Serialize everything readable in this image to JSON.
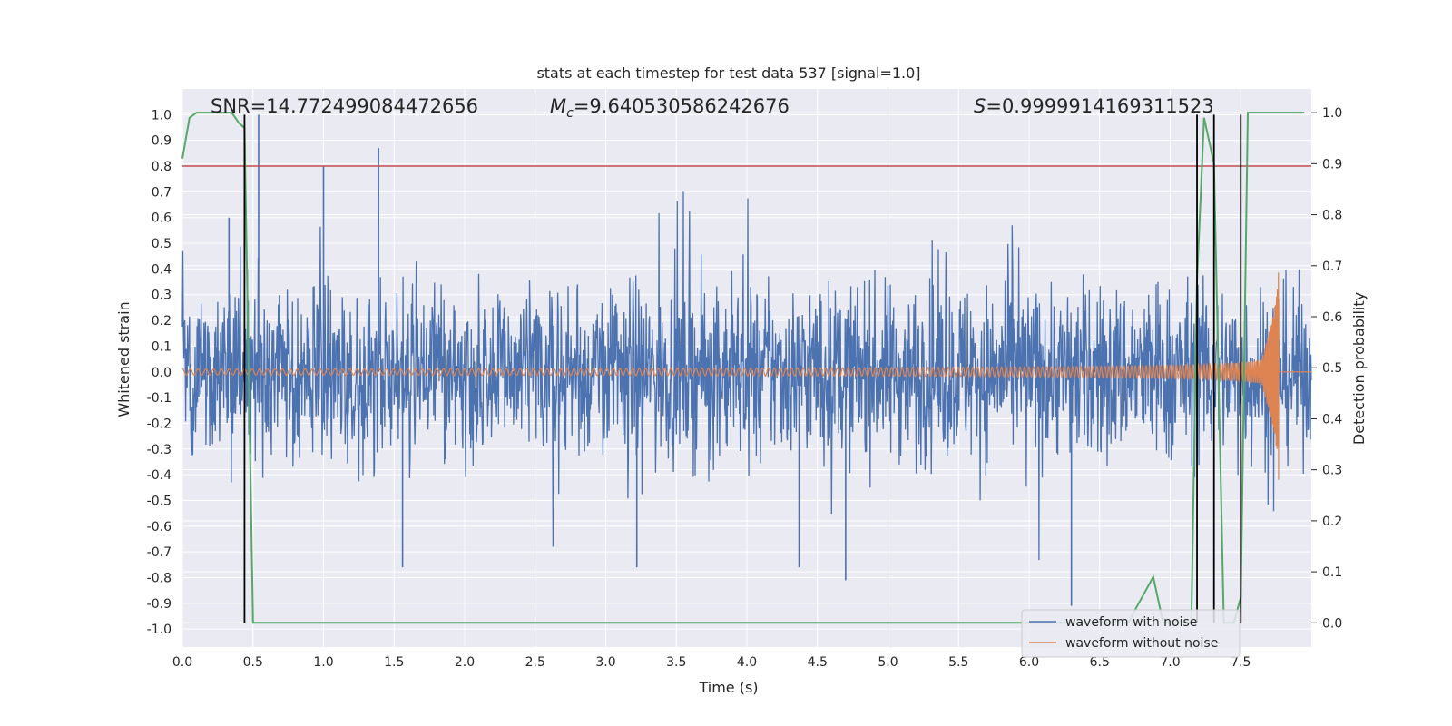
{
  "chart_data": {
    "type": "line",
    "title": "stats at each timestep for test data 537 [signal=1.0]",
    "xlabel": "Time (s)",
    "ylabel": "Whitened strain",
    "y2label": "Detection probability",
    "xlim": [
      0.0,
      8.0
    ],
    "ylim": [
      -1.07,
      1.1
    ],
    "y2lim": [
      -0.0475,
      1.0465
    ],
    "xticks": [
      0.0,
      0.5,
      1.0,
      1.5,
      2.0,
      2.5,
      3.0,
      3.5,
      4.0,
      4.5,
      5.0,
      5.5,
      6.0,
      6.5,
      7.0,
      7.5
    ],
    "xtick_labels": [
      "0.0",
      "0.5",
      "1.0",
      "1.5",
      "2.0",
      "2.5",
      "3.0",
      "3.5",
      "4.0",
      "4.5",
      "5.0",
      "5.5",
      "6.0",
      "6.5",
      "7.0",
      "7.5"
    ],
    "yticks": [
      1.0,
      0.9,
      0.8,
      0.7,
      0.6,
      0.5,
      0.4,
      0.3,
      0.2,
      0.1,
      0.0,
      -0.1,
      -0.2,
      -0.3,
      -0.4,
      -0.5,
      -0.6,
      -0.7,
      -0.8,
      -0.9,
      -1.0
    ],
    "ytick_labels": [
      "1.0",
      "0.9",
      "0.8",
      "0.7",
      "0.6",
      "0.5",
      "0.4",
      "0.3",
      "0.2",
      "0.1",
      "0.0",
      "-0.1",
      "-0.2",
      "-0.3",
      "-0.4",
      "-0.5",
      "-0.6",
      "-0.7",
      "-0.8",
      "-0.9",
      "-1.0"
    ],
    "y2ticks": [
      1.0,
      0.9,
      0.8,
      0.7,
      0.6,
      0.5,
      0.4,
      0.3,
      0.2,
      0.1,
      0.0
    ],
    "y2tick_labels": [
      "1.0",
      "0.9",
      "0.8",
      "0.7",
      "0.6",
      "0.5",
      "0.4",
      "0.3",
      "0.2",
      "0.1",
      "0.0"
    ],
    "grid": true,
    "annotations": {
      "snr": "SNR=14.772499084472656",
      "mc_symbol": "M",
      "mc_sub": "c",
      "mc_value": "=9.640530586242676",
      "s_symbol": "S",
      "s_value": "=0.9999914169311523"
    },
    "threshold_line": {
      "axis": "left",
      "y": 0.8,
      "color": "#c44e52"
    },
    "vertical_markers": [
      0.44,
      7.19,
      7.31,
      7.5
    ],
    "series": [
      {
        "name": "waveform with noise",
        "color": "#4c72b0",
        "axis": "left",
        "description": "dense noisy strain signal, amplitude mostly within ±0.4, peaks near ±1.0",
        "typical_amplitude": 0.32,
        "peaks": [
          [
            0.46,
            0.4
          ],
          [
            0.54,
            1.0
          ],
          [
            1.0,
            0.8
          ],
          [
            1.39,
            0.87
          ],
          [
            0.33,
            0.6
          ],
          [
            4.7,
            -0.81
          ],
          [
            1.56,
            -0.76
          ],
          [
            3.22,
            -0.76
          ],
          [
            4.37,
            -0.76
          ],
          [
            6.3,
            -0.91
          ]
        ]
      },
      {
        "name": "waveform without noise",
        "color": "#dd8452",
        "axis": "left",
        "description": "chirp waveform, amplitude grows toward merger",
        "t_merger": 7.77,
        "amplitude_start": 0.012,
        "amplitude_peak": 0.43
      },
      {
        "name": "detection probability",
        "color": "#55a868",
        "axis": "right",
        "x": [
          0.0,
          0.05,
          0.1,
          0.15,
          0.2,
          0.25,
          0.3,
          0.35,
          0.4,
          0.44,
          0.5,
          1.0,
          2.0,
          3.0,
          4.0,
          5.0,
          6.0,
          6.7,
          6.88,
          6.95,
          7.15,
          7.19,
          7.24,
          7.31,
          7.38,
          7.45,
          7.5,
          7.55,
          7.6,
          7.7,
          7.8,
          7.95
        ],
        "y": [
          0.91,
          0.99,
          1.0,
          1.0,
          1.0,
          1.0,
          1.0,
          1.0,
          0.98,
          0.97,
          0.0,
          0.0,
          0.0,
          0.0,
          0.0,
          0.0,
          0.0,
          0.0,
          0.09,
          0.0,
          0.0,
          0.67,
          0.99,
          0.9,
          0.0,
          0.0,
          0.05,
          1.0,
          1.0,
          1.0,
          1.0,
          1.0
        ]
      }
    ],
    "legend": {
      "placement": "bottom-right",
      "entries": [
        {
          "label": "waveform with noise",
          "color": "#4c72b0"
        },
        {
          "label": "waveform without noise",
          "color": "#dd8452"
        }
      ]
    },
    "colors": {
      "plot_bg": "#eaeaf2",
      "grid": "#ffffff",
      "markers": "#000000"
    }
  }
}
